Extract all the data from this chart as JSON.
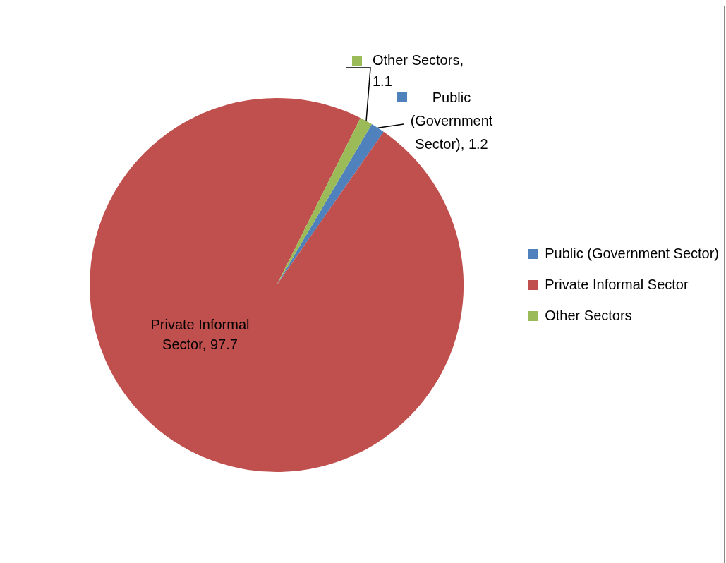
{
  "chart_data": {
    "type": "pie",
    "categories": [
      "Public (Government Sector)",
      "Private Informal Sector",
      "Other Sectors"
    ],
    "values": [
      1.2,
      97.7,
      1.1
    ],
    "colors": [
      "#4f81bd",
      "#c0504d",
      "#9bbb59"
    ],
    "value_labels": [
      "Public (Government Sector), 1.2",
      "Private Informal Sector, 97.7",
      "Other Sectors, 1.1"
    ],
    "legend": "right"
  }
}
